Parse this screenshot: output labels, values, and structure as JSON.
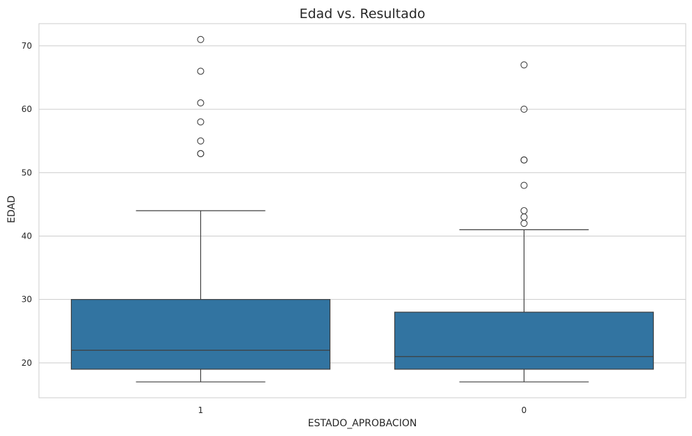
{
  "chart_data": {
    "type": "box",
    "title": "Edad vs. Resultado",
    "xlabel": "ESTADO_APROBACION",
    "ylabel": "EDAD",
    "categories": [
      "1",
      "0"
    ],
    "ylim": [
      14.5,
      73.5
    ],
    "yticks": [
      20,
      30,
      40,
      50,
      60,
      70
    ],
    "grid": "horizontal",
    "box_color": "#3274a1",
    "line_color": "#3f3f3f",
    "grid_color": "#cccccc",
    "spine_color": "#cccccc",
    "boxes": [
      {
        "category": "1",
        "whisker_low": 17,
        "q1": 19,
        "median": 22,
        "q3": 30,
        "whisker_high": 44,
        "outliers": [
          53,
          53,
          55,
          58,
          61,
          66,
          71
        ]
      },
      {
        "category": "0",
        "whisker_low": 17,
        "q1": 19,
        "median": 21,
        "q3": 28,
        "whisker_high": 41,
        "outliers": [
          42,
          43,
          44,
          48,
          52,
          52,
          60,
          67
        ]
      }
    ]
  }
}
